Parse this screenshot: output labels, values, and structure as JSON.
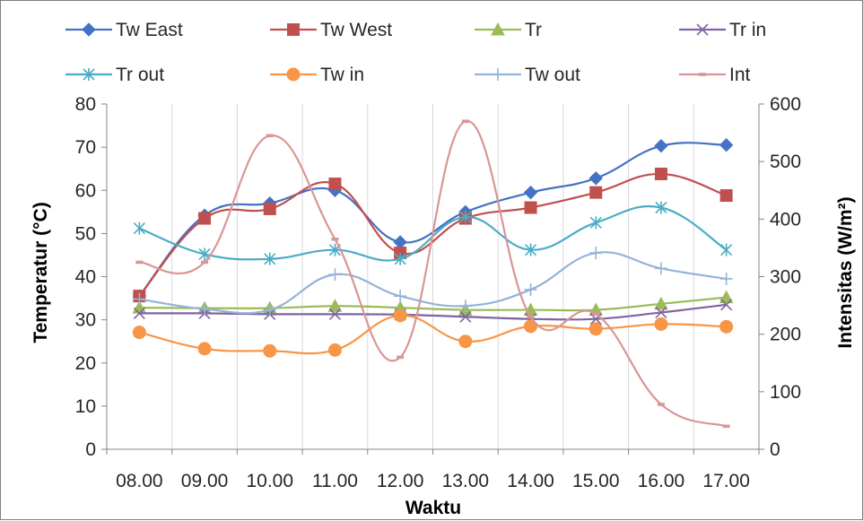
{
  "chart_data": {
    "type": "line",
    "x": [
      "08.00",
      "09.00",
      "10.00",
      "11.00",
      "12.00",
      "13.00",
      "14.00",
      "15.00",
      "16.00",
      "17.00"
    ],
    "xlabel": "Waktu",
    "ylabel": "Temperatur (°C)",
    "ylabel_right": "Intensitas (W/m²)",
    "ylim": [
      0,
      80
    ],
    "ylim_right": [
      0,
      600
    ],
    "yticks": [
      "0",
      "10",
      "20",
      "30",
      "40",
      "50",
      "60",
      "70",
      "80"
    ],
    "yticks_right": [
      "0",
      "100",
      "200",
      "300",
      "400",
      "500",
      "600"
    ],
    "grid": "vertical",
    "legend_position": "top",
    "series": [
      {
        "name": "Tw East",
        "axis": "left",
        "color": "#4472c4",
        "marker": "diamond",
        "values": [
          35.5,
          54.2,
          57.0,
          60.0,
          48.0,
          55.0,
          59.5,
          62.8,
          70.3,
          70.5
        ]
      },
      {
        "name": "Tw West",
        "axis": "left",
        "color": "#c0504d",
        "marker": "square",
        "values": [
          35.5,
          53.5,
          55.7,
          61.5,
          45.5,
          53.5,
          56.0,
          59.5,
          63.8,
          58.8
        ]
      },
      {
        "name": "Tr",
        "axis": "left",
        "color": "#9bbb59",
        "marker": "triangle",
        "values": [
          32.8,
          32.7,
          32.7,
          33.2,
          32.8,
          32.3,
          32.3,
          32.3,
          33.7,
          35.2
        ]
      },
      {
        "name": "Tr in",
        "axis": "left",
        "color": "#8064a2",
        "marker": "x",
        "values": [
          31.5,
          31.5,
          31.3,
          31.3,
          31.2,
          30.7,
          30.2,
          30.2,
          31.7,
          33.5
        ]
      },
      {
        "name": "Tr out",
        "axis": "left",
        "color": "#4bacc6",
        "marker": "star",
        "values": [
          51.2,
          45.2,
          44.1,
          46.2,
          44.1,
          53.8,
          46.2,
          52.5,
          56.0,
          46.2
        ]
      },
      {
        "name": "Tw in",
        "axis": "left",
        "color": "#f79646",
        "marker": "circle",
        "values": [
          27.1,
          23.3,
          22.8,
          23.0,
          31.0,
          25.0,
          28.5,
          27.9,
          29.0,
          28.4
        ]
      },
      {
        "name": "Tw out",
        "axis": "left",
        "color": "#95b3d7",
        "marker": "plus",
        "values": [
          34.8,
          32.5,
          32.3,
          40.5,
          35.5,
          33.2,
          37.0,
          45.5,
          41.9,
          39.5
        ]
      },
      {
        "name": "Int",
        "axis": "right",
        "color": "#d99694",
        "marker": "dash",
        "values": [
          325,
          325,
          545,
          365,
          160,
          570,
          230,
          235,
          78,
          40
        ]
      }
    ]
  }
}
